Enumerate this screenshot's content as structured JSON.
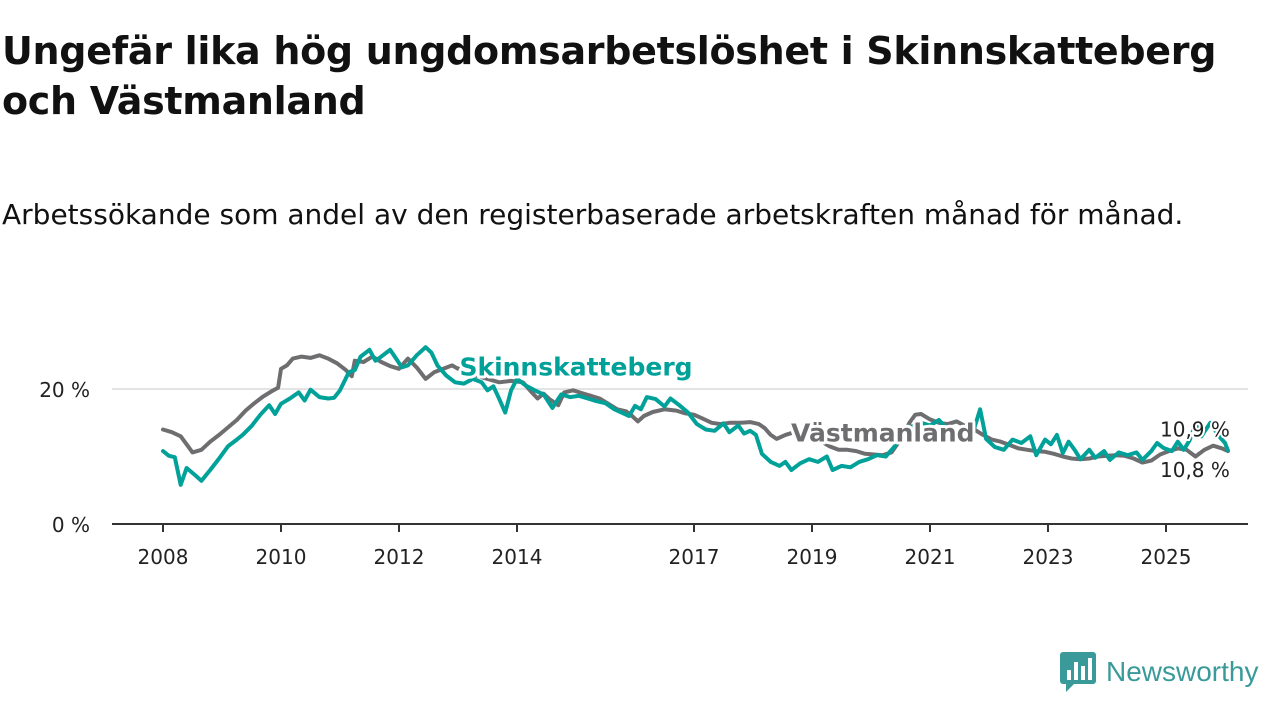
{
  "title": "Ungefär lika hög ungdomsarbetslöshet i Skinnskatteberg och Västmanland",
  "subtitle": "Arbetssökande som andel av den registerbaserade arbetskraften månad för månad.",
  "brand": {
    "name": "Newsworthy",
    "color": "#3a9a9a"
  },
  "colors": {
    "primary": "#00a199",
    "secondary": "#6e6e70",
    "grid": "#dcdcdc",
    "axis": "#333333"
  },
  "chart_data": {
    "type": "line",
    "title": "Ungefär lika hög ungdomsarbetslöshet i Skinnskatteberg och Västmanland",
    "xlabel": "",
    "ylabel": "",
    "xlim": [
      2008,
      2026
    ],
    "ylim": [
      0,
      27
    ],
    "y_ticks": [
      {
        "value": 0,
        "label": "0 %"
      },
      {
        "value": 20,
        "label": "20 %"
      }
    ],
    "x_ticks": [
      {
        "value": 2008,
        "label": "2008"
      },
      {
        "value": 2010,
        "label": "2010"
      },
      {
        "value": 2012,
        "label": "2012"
      },
      {
        "value": 2014,
        "label": "2014"
      },
      {
        "value": 2017,
        "label": "2017"
      },
      {
        "value": 2019,
        "label": "2019"
      },
      {
        "value": 2021,
        "label": "2021"
      },
      {
        "value": 2023,
        "label": "2023"
      },
      {
        "value": 2025,
        "label": "2025"
      }
    ],
    "series": [
      {
        "name": "Västmanland",
        "color": "#6e6e70",
        "end_label": "10,8 %",
        "points": [
          [
            2008.0,
            14.0
          ],
          [
            2008.15,
            13.6
          ],
          [
            2008.3,
            13.0
          ],
          [
            2008.4,
            11.8
          ],
          [
            2008.5,
            10.6
          ],
          [
            2008.65,
            11.0
          ],
          [
            2008.8,
            12.2
          ],
          [
            2008.95,
            13.2
          ],
          [
            2009.1,
            14.3
          ],
          [
            2009.25,
            15.4
          ],
          [
            2009.4,
            16.8
          ],
          [
            2009.55,
            17.9
          ],
          [
            2009.7,
            18.9
          ],
          [
            2009.85,
            19.7
          ],
          [
            2009.95,
            20.2
          ],
          [
            2010.0,
            23.0
          ],
          [
            2010.1,
            23.5
          ],
          [
            2010.2,
            24.5
          ],
          [
            2010.35,
            24.8
          ],
          [
            2010.5,
            24.6
          ],
          [
            2010.65,
            25.0
          ],
          [
            2010.8,
            24.5
          ],
          [
            2010.95,
            23.8
          ],
          [
            2011.1,
            22.8
          ],
          [
            2011.2,
            21.9
          ],
          [
            2011.25,
            24.2
          ],
          [
            2011.4,
            24.0
          ],
          [
            2011.55,
            24.8
          ],
          [
            2011.7,
            24.0
          ],
          [
            2011.85,
            23.4
          ],
          [
            2012.0,
            23.0
          ],
          [
            2012.15,
            24.5
          ],
          [
            2012.3,
            23.2
          ],
          [
            2012.45,
            21.5
          ],
          [
            2012.6,
            22.5
          ],
          [
            2012.75,
            23.0
          ],
          [
            2012.9,
            23.5
          ],
          [
            2013.0,
            23.0
          ],
          [
            2013.15,
            23.6
          ],
          [
            2013.3,
            22.0
          ],
          [
            2013.5,
            21.5
          ],
          [
            2013.7,
            21.0
          ],
          [
            2013.9,
            21.2
          ],
          [
            2014.1,
            21.0
          ],
          [
            2014.25,
            19.5
          ],
          [
            2014.35,
            18.6
          ],
          [
            2014.45,
            19.3
          ],
          [
            2014.55,
            18.5
          ],
          [
            2014.7,
            17.6
          ],
          [
            2014.8,
            19.5
          ],
          [
            2014.95,
            19.8
          ],
          [
            2015.1,
            19.4
          ],
          [
            2015.25,
            19.0
          ],
          [
            2015.4,
            18.6
          ],
          [
            2015.55,
            17.8
          ],
          [
            2015.7,
            17.0
          ],
          [
            2015.85,
            16.7
          ],
          [
            2015.95,
            16.0
          ],
          [
            2016.05,
            15.2
          ],
          [
            2016.15,
            16.0
          ],
          [
            2016.3,
            16.6
          ],
          [
            2016.5,
            17.0
          ],
          [
            2016.7,
            16.8
          ],
          [
            2016.85,
            16.4
          ],
          [
            2017.0,
            16.2
          ],
          [
            2017.15,
            15.6
          ],
          [
            2017.3,
            15.0
          ],
          [
            2017.45,
            14.8
          ],
          [
            2017.6,
            15.0
          ],
          [
            2017.8,
            15.0
          ],
          [
            2017.95,
            15.1
          ],
          [
            2018.1,
            14.8
          ],
          [
            2018.2,
            14.2
          ],
          [
            2018.3,
            13.2
          ],
          [
            2018.4,
            12.6
          ],
          [
            2018.55,
            13.2
          ],
          [
            2018.7,
            13.6
          ],
          [
            2018.85,
            13.2
          ],
          [
            2019.0,
            12.9
          ],
          [
            2019.15,
            12.3
          ],
          [
            2019.3,
            11.5
          ],
          [
            2019.45,
            11.0
          ],
          [
            2019.6,
            11.0
          ],
          [
            2019.75,
            10.8
          ],
          [
            2019.9,
            10.4
          ],
          [
            2020.05,
            10.3
          ],
          [
            2020.2,
            10.2
          ],
          [
            2020.35,
            10.6
          ],
          [
            2020.5,
            12.5
          ],
          [
            2020.65,
            15.0
          ],
          [
            2020.75,
            16.2
          ],
          [
            2020.85,
            16.3
          ],
          [
            2021.0,
            15.5
          ],
          [
            2021.15,
            15.0
          ],
          [
            2021.3,
            14.8
          ],
          [
            2021.45,
            15.2
          ],
          [
            2021.6,
            14.5
          ],
          [
            2021.75,
            14.0
          ],
          [
            2021.9,
            13.2
          ],
          [
            2022.05,
            12.5
          ],
          [
            2022.2,
            12.2
          ],
          [
            2022.35,
            11.7
          ],
          [
            2022.5,
            11.2
          ],
          [
            2022.65,
            11.0
          ],
          [
            2022.8,
            10.8
          ],
          [
            2022.95,
            10.7
          ],
          [
            2023.1,
            10.4
          ],
          [
            2023.25,
            10.0
          ],
          [
            2023.4,
            9.7
          ],
          [
            2023.55,
            9.6
          ],
          [
            2023.7,
            9.7
          ],
          [
            2023.85,
            10.0
          ],
          [
            2024.0,
            10.1
          ],
          [
            2024.15,
            10.2
          ],
          [
            2024.3,
            10.1
          ],
          [
            2024.45,
            9.7
          ],
          [
            2024.6,
            9.1
          ],
          [
            2024.75,
            9.4
          ],
          [
            2024.9,
            10.3
          ],
          [
            2025.05,
            10.8
          ],
          [
            2025.2,
            11.2
          ],
          [
            2025.35,
            11.0
          ],
          [
            2025.5,
            10.0
          ],
          [
            2025.65,
            11.0
          ],
          [
            2025.8,
            11.6
          ],
          [
            2025.95,
            11.2
          ],
          [
            2026.05,
            10.8
          ]
        ]
      },
      {
        "name": "Skinnskatteberg",
        "color": "#00a199",
        "end_label": "10,9 %",
        "points": [
          [
            2008.0,
            10.8
          ],
          [
            2008.1,
            10.1
          ],
          [
            2008.2,
            9.9
          ],
          [
            2008.3,
            5.8
          ],
          [
            2008.4,
            8.3
          ],
          [
            2008.55,
            7.2
          ],
          [
            2008.65,
            6.4
          ],
          [
            2008.8,
            8.0
          ],
          [
            2008.95,
            9.7
          ],
          [
            2009.1,
            11.5
          ],
          [
            2009.25,
            12.5
          ],
          [
            2009.35,
            13.2
          ],
          [
            2009.5,
            14.5
          ],
          [
            2009.65,
            16.2
          ],
          [
            2009.8,
            17.6
          ],
          [
            2009.9,
            16.3
          ],
          [
            2010.0,
            17.8
          ],
          [
            2010.15,
            18.6
          ],
          [
            2010.3,
            19.5
          ],
          [
            2010.4,
            18.3
          ],
          [
            2010.5,
            19.9
          ],
          [
            2010.65,
            18.8
          ],
          [
            2010.8,
            18.6
          ],
          [
            2010.9,
            18.7
          ],
          [
            2011.0,
            19.8
          ],
          [
            2011.15,
            22.5
          ],
          [
            2011.25,
            22.8
          ],
          [
            2011.35,
            24.8
          ],
          [
            2011.5,
            25.8
          ],
          [
            2011.6,
            24.2
          ],
          [
            2011.7,
            24.8
          ],
          [
            2011.85,
            25.8
          ],
          [
            2011.95,
            24.5
          ],
          [
            2012.05,
            23.2
          ],
          [
            2012.15,
            23.5
          ],
          [
            2012.3,
            25.0
          ],
          [
            2012.45,
            26.2
          ],
          [
            2012.55,
            25.4
          ],
          [
            2012.65,
            23.5
          ],
          [
            2012.8,
            22.0
          ],
          [
            2012.95,
            21.0
          ],
          [
            2013.1,
            20.8
          ],
          [
            2013.25,
            21.5
          ],
          [
            2013.4,
            21.0
          ],
          [
            2013.5,
            19.8
          ],
          [
            2013.6,
            20.4
          ],
          [
            2013.7,
            18.5
          ],
          [
            2013.8,
            16.5
          ],
          [
            2013.9,
            19.8
          ],
          [
            2014.0,
            21.5
          ],
          [
            2014.15,
            20.5
          ],
          [
            2014.3,
            19.8
          ],
          [
            2014.45,
            19.2
          ],
          [
            2014.6,
            17.2
          ],
          [
            2014.75,
            19.2
          ],
          [
            2014.9,
            18.8
          ],
          [
            2015.05,
            19.0
          ],
          [
            2015.2,
            18.6
          ],
          [
            2015.35,
            18.2
          ],
          [
            2015.5,
            17.9
          ],
          [
            2015.65,
            17.0
          ],
          [
            2015.8,
            16.4
          ],
          [
            2015.9,
            16.0
          ],
          [
            2016.0,
            17.5
          ],
          [
            2016.1,
            17.0
          ],
          [
            2016.2,
            18.8
          ],
          [
            2016.35,
            18.5
          ],
          [
            2016.5,
            17.4
          ],
          [
            2016.6,
            18.6
          ],
          [
            2016.75,
            17.6
          ],
          [
            2016.9,
            16.5
          ],
          [
            2017.05,
            14.8
          ],
          [
            2017.2,
            14.0
          ],
          [
            2017.35,
            13.8
          ],
          [
            2017.5,
            14.9
          ],
          [
            2017.6,
            13.6
          ],
          [
            2017.75,
            14.6
          ],
          [
            2017.85,
            13.4
          ],
          [
            2017.95,
            13.8
          ],
          [
            2018.05,
            13.2
          ],
          [
            2018.15,
            10.4
          ],
          [
            2018.3,
            9.2
          ],
          [
            2018.45,
            8.6
          ],
          [
            2018.55,
            9.2
          ],
          [
            2018.65,
            8.0
          ],
          [
            2018.8,
            9.0
          ],
          [
            2018.95,
            9.6
          ],
          [
            2019.1,
            9.2
          ],
          [
            2019.25,
            10.0
          ],
          [
            2019.35,
            8.0
          ],
          [
            2019.5,
            8.6
          ],
          [
            2019.65,
            8.4
          ],
          [
            2019.8,
            9.2
          ],
          [
            2019.95,
            9.6
          ],
          [
            2020.1,
            10.2
          ],
          [
            2020.25,
            10.0
          ],
          [
            2020.4,
            11.5
          ],
          [
            2020.55,
            13.5
          ],
          [
            2020.7,
            14.5
          ],
          [
            2020.85,
            15.0
          ],
          [
            2021.0,
            14.6
          ],
          [
            2021.15,
            15.4
          ],
          [
            2021.3,
            14.0
          ],
          [
            2021.45,
            13.2
          ],
          [
            2021.6,
            12.8
          ],
          [
            2021.75,
            14.2
          ],
          [
            2021.85,
            17.0
          ],
          [
            2021.95,
            12.6
          ],
          [
            2022.1,
            11.4
          ],
          [
            2022.25,
            11.0
          ],
          [
            2022.4,
            12.5
          ],
          [
            2022.55,
            12.0
          ],
          [
            2022.7,
            13.0
          ],
          [
            2022.8,
            10.2
          ],
          [
            2022.95,
            12.5
          ],
          [
            2023.05,
            11.8
          ],
          [
            2023.15,
            13.2
          ],
          [
            2023.25,
            10.5
          ],
          [
            2023.35,
            12.2
          ],
          [
            2023.45,
            11.0
          ],
          [
            2023.55,
            9.6
          ],
          [
            2023.7,
            11.0
          ],
          [
            2023.8,
            9.8
          ],
          [
            2023.95,
            10.8
          ],
          [
            2024.05,
            9.5
          ],
          [
            2024.2,
            10.6
          ],
          [
            2024.35,
            10.2
          ],
          [
            2024.5,
            10.6
          ],
          [
            2024.6,
            9.5
          ],
          [
            2024.75,
            10.8
          ],
          [
            2024.85,
            12.0
          ],
          [
            2024.95,
            11.3
          ],
          [
            2025.1,
            10.8
          ],
          [
            2025.2,
            12.2
          ],
          [
            2025.3,
            11.0
          ],
          [
            2025.4,
            12.4
          ],
          [
            2025.5,
            14.8
          ],
          [
            2025.6,
            13.0
          ],
          [
            2025.75,
            15.0
          ],
          [
            2025.9,
            13.0
          ],
          [
            2026.0,
            12.0
          ],
          [
            2026.05,
            10.9
          ]
        ]
      }
    ],
    "annotations": [
      {
        "text": "Skinnskatteberg",
        "series": "Skinnskatteberg",
        "x": 2015.0,
        "y": 22.0
      },
      {
        "text": "Västmanland",
        "series": "Västmanland",
        "x": 2020.2,
        "y": 12.2
      }
    ]
  }
}
